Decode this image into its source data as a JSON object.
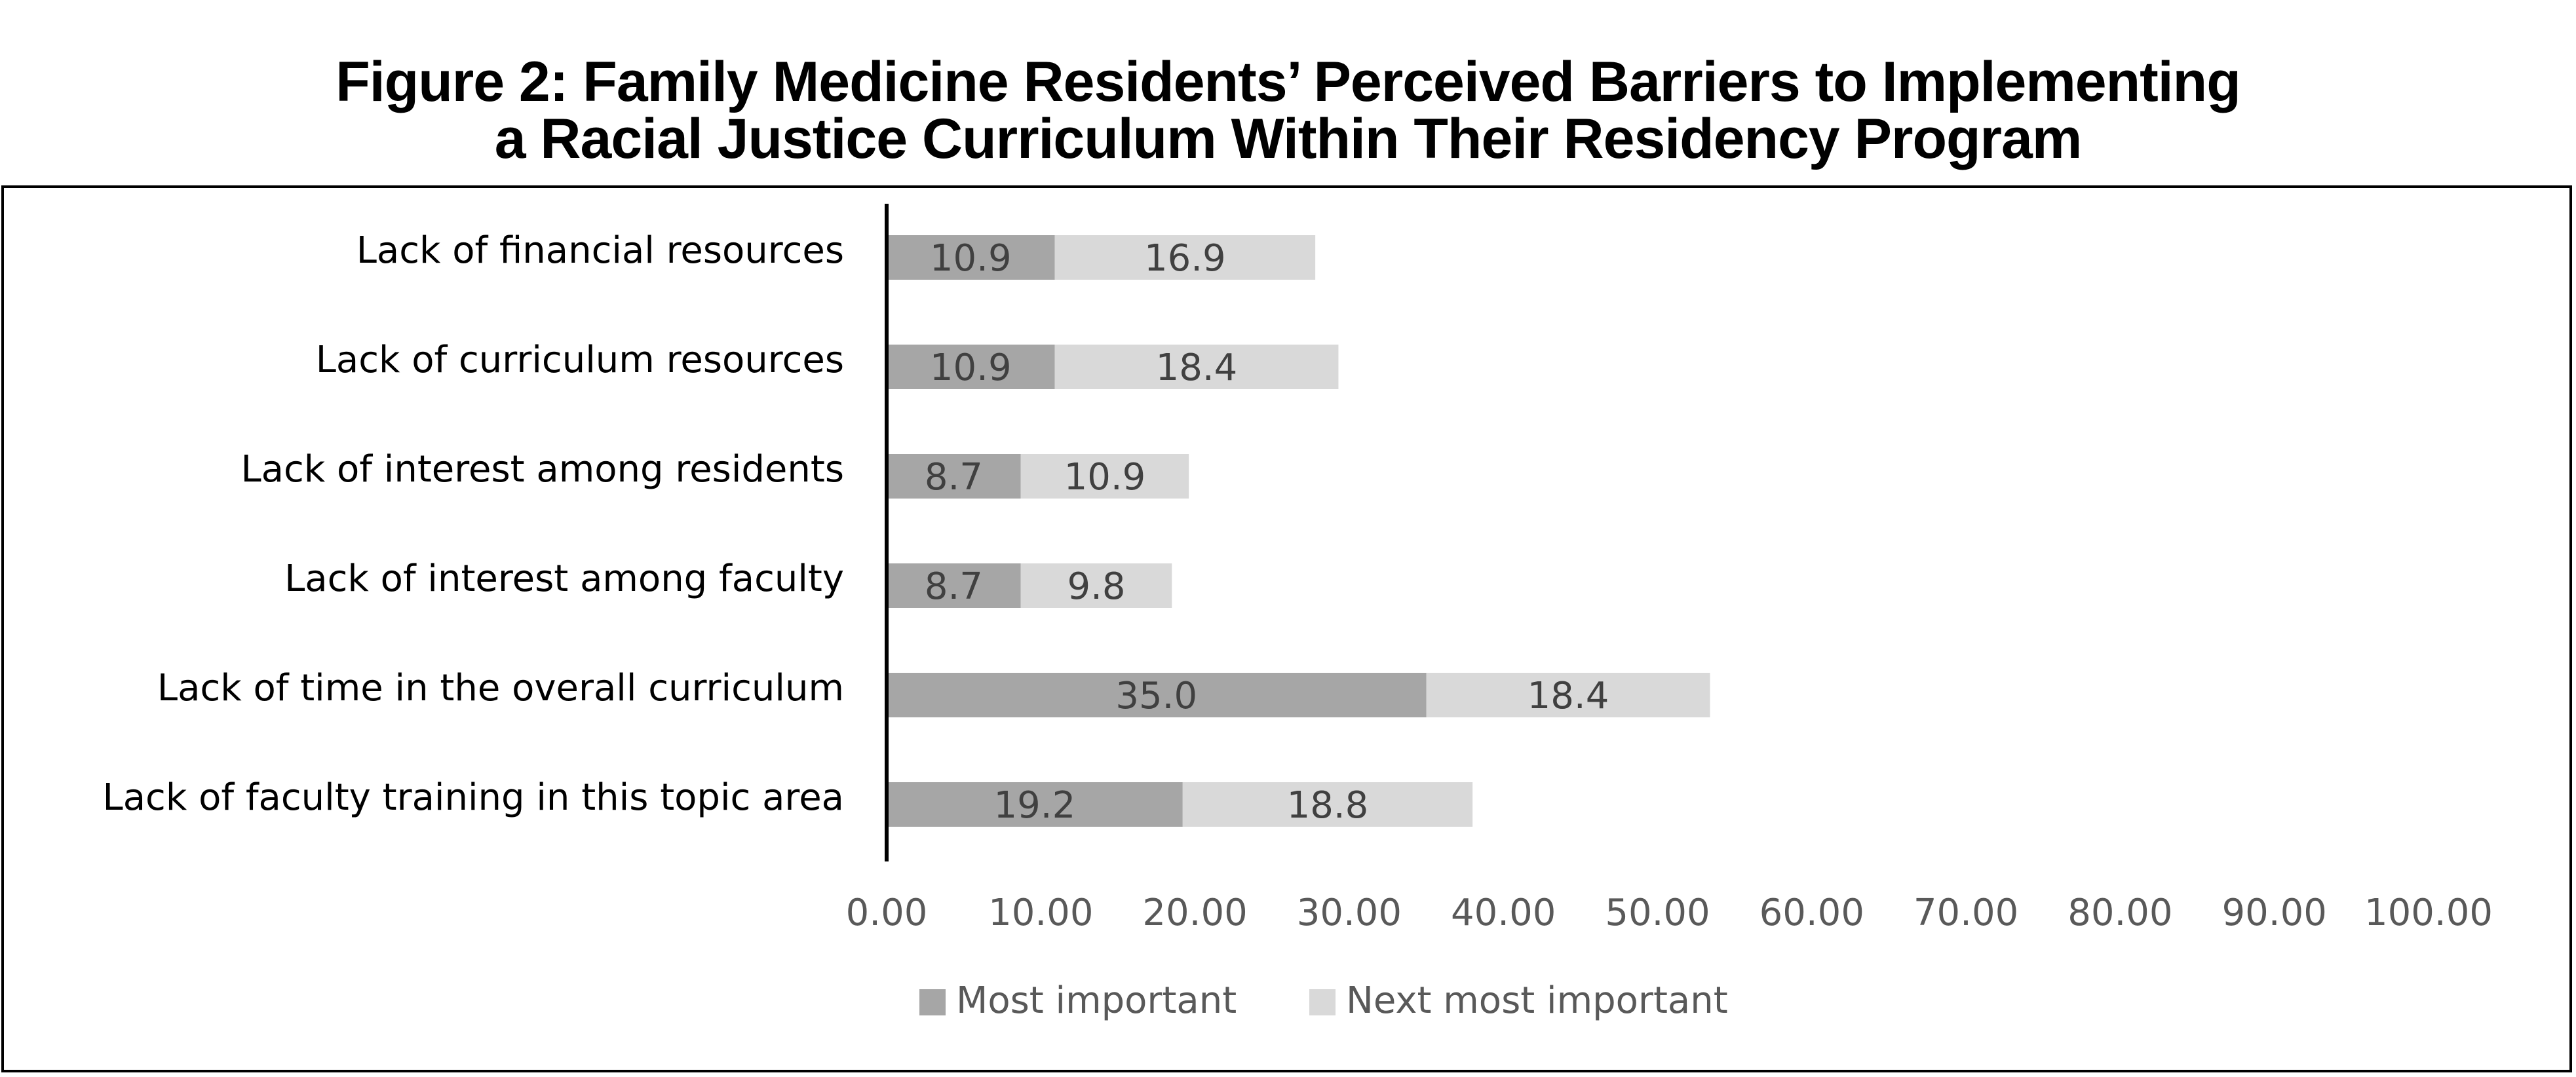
{
  "chart_data": {
    "type": "bar",
    "orientation": "horizontal",
    "stacked": true,
    "title_lines": [
      "Figure 2: Family Medicine Residents’ Perceived Barriers to Implementing",
      "a Racial Justice Curriculum Within Their Residency Program"
    ],
    "categories": [
      "Lack of financial resources",
      "Lack of curriculum resources",
      "Lack of interest among residents",
      "Lack of interest among faculty",
      "Lack of time in the overall curriculum",
      "Lack of faculty training in this topic area"
    ],
    "series": [
      {
        "name": "Most important",
        "color": "#a6a6a6",
        "values": [
          10.9,
          10.9,
          8.7,
          8.7,
          35.0,
          19.2
        ],
        "labels": [
          "10.9",
          "10.9",
          "8.7",
          "8.7",
          "35.0",
          "19.2"
        ]
      },
      {
        "name": "Next most important",
        "color": "#d9d9d9",
        "values": [
          16.9,
          18.4,
          10.9,
          9.8,
          18.4,
          18.8
        ],
        "labels": [
          "16.9",
          "18.4",
          "10.9",
          "9.8",
          "18.4",
          "18.8"
        ]
      }
    ],
    "xlim": [
      0,
      100
    ],
    "x_ticks": [
      "0.00",
      "10.00",
      "20.00",
      "30.00",
      "40.00",
      "50.00",
      "60.00",
      "70.00",
      "80.00",
      "90.00",
      "100.00"
    ],
    "grid": false,
    "legend_position": "bottom"
  }
}
